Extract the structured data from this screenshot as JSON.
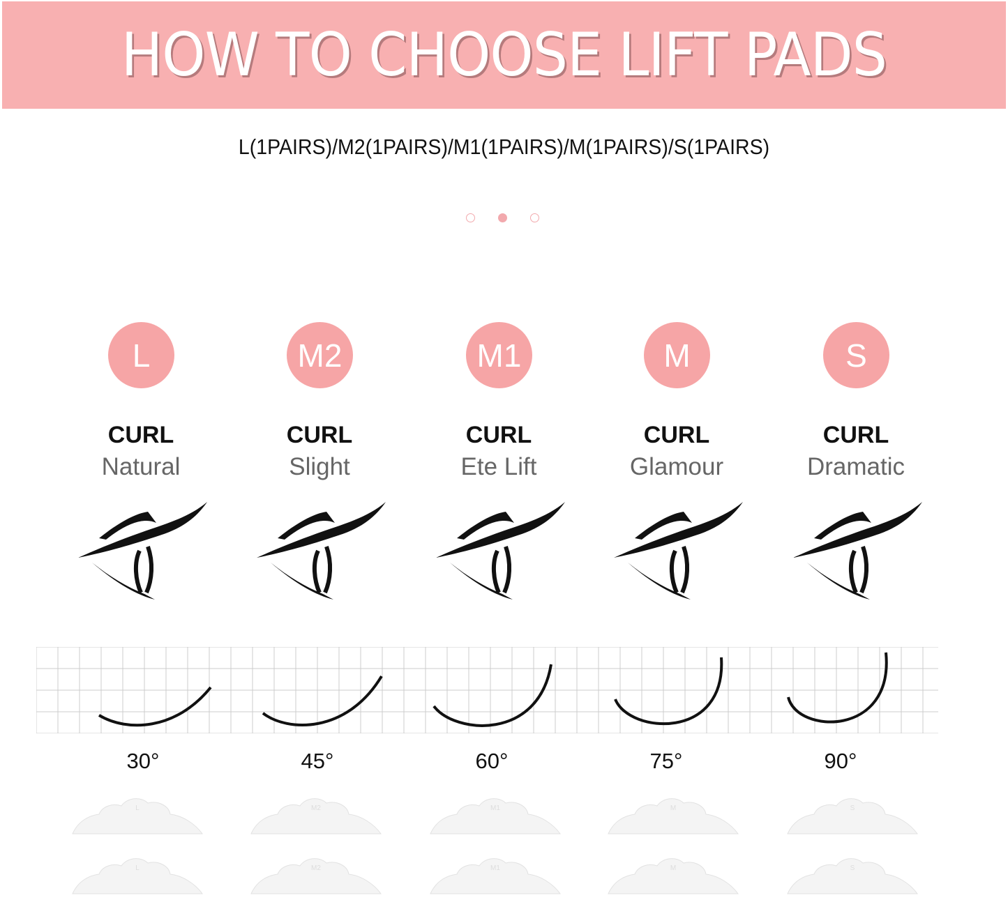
{
  "header": {
    "title": "HOW TO CHOOSE LIFT PADS"
  },
  "subtitle": "L(1PAIRS)/M2(1PAIRS)/M1(1PAIRS)/M(1PAIRS)/S(1PAIRS)",
  "carousel": {
    "count": 3,
    "active_index": 1
  },
  "colors": {
    "accent": "#f6a5a6",
    "banner": "#f8b0b1"
  },
  "sizes": [
    {
      "badge": "L",
      "curl_label": "CURL",
      "style": "Natural",
      "angle": "30°"
    },
    {
      "badge": "M2",
      "curl_label": "CURL",
      "style": "Slight",
      "angle": "45°"
    },
    {
      "badge": "M1",
      "curl_label": "CURL",
      "style": "Ete Lift",
      "angle": "60°"
    },
    {
      "badge": "M",
      "curl_label": "CURL",
      "style": "Glamour",
      "angle": "75°"
    },
    {
      "badge": "S",
      "curl_label": "CURL",
      "style": "Dramatic",
      "angle": "90°"
    }
  ]
}
